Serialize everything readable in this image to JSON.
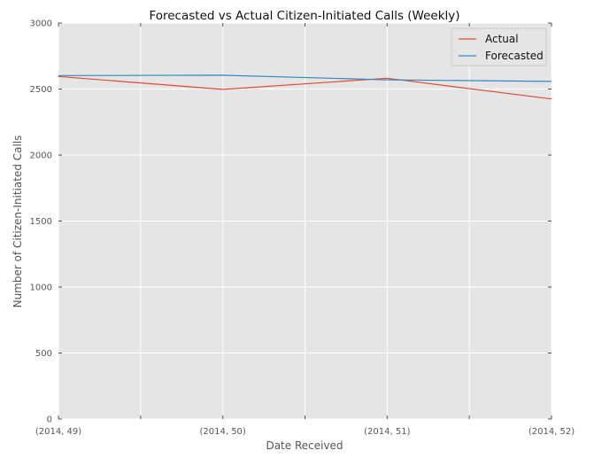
{
  "chart_data": {
    "type": "line",
    "title": "Forecasted vs Actual Citizen-Initiated Calls (Weekly)",
    "xlabel": "Date Received",
    "ylabel": "Number of Citizen-Initiated Calls",
    "categories": [
      "(2014, 49)",
      "(2014, 50)",
      "(2014, 51)",
      "(2014, 52)"
    ],
    "ylim": [
      0,
      3000
    ],
    "yticks": [
      0,
      500,
      1000,
      1500,
      2000,
      2500,
      3000
    ],
    "grid": true,
    "legend_position": "top-right",
    "series": [
      {
        "name": "Actual",
        "color": "#E24A33",
        "values": [
          2595,
          2497,
          2582,
          2425
        ]
      },
      {
        "name": "Forecasted",
        "color": "#348ABD",
        "values": [
          2602,
          2605,
          2570,
          2558
        ]
      }
    ]
  }
}
